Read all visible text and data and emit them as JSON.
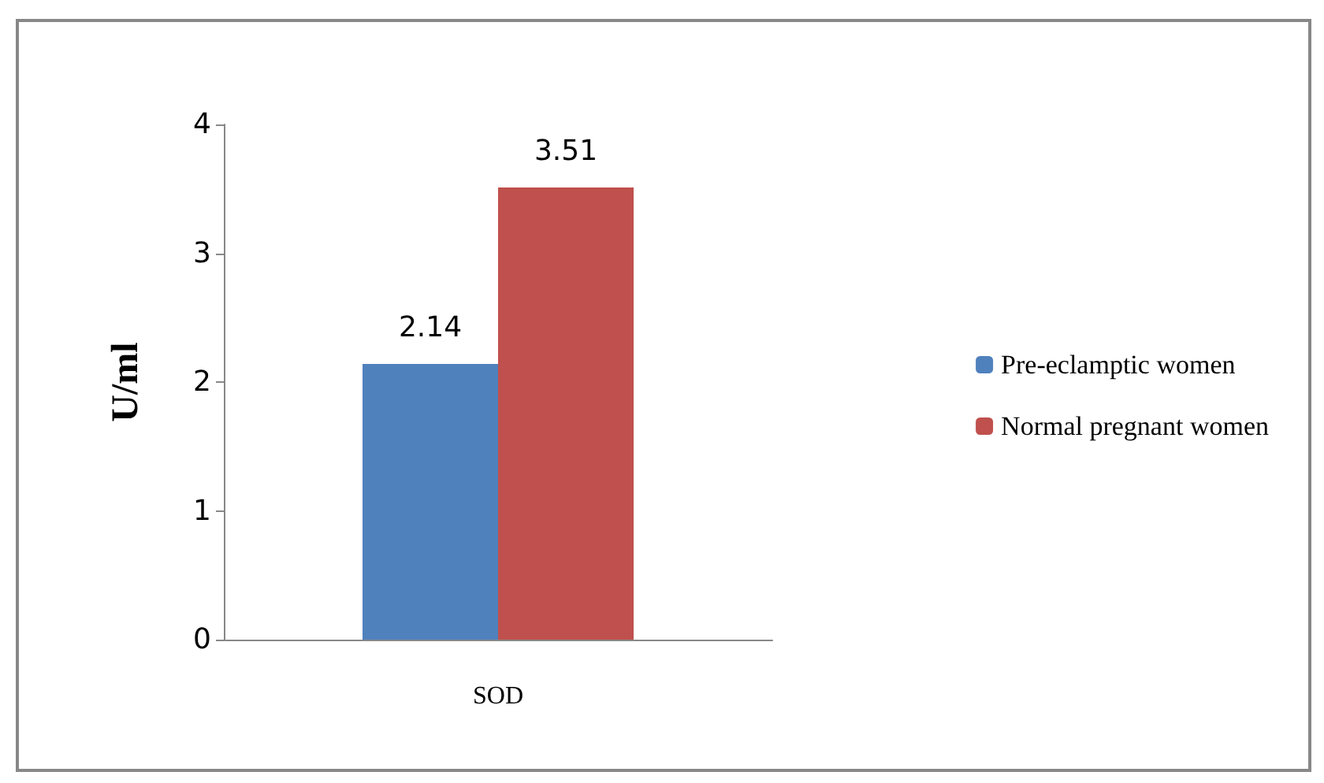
{
  "chart_data": {
    "type": "bar",
    "categories": [
      "SOD"
    ],
    "ylabel": "U/ml",
    "series": [
      {
        "name": "Pre-eclamptic women",
        "color": "#4f81bd",
        "values": [
          2.14
        ]
      },
      {
        "name": "Normal pregnant women",
        "color": "#c0504d",
        "values": [
          3.51
        ]
      }
    ],
    "ylim": [
      0,
      4
    ],
    "yticks": [
      0,
      1,
      2,
      3,
      4
    ],
    "grid": false,
    "legend": "right",
    "data_labels": true
  }
}
